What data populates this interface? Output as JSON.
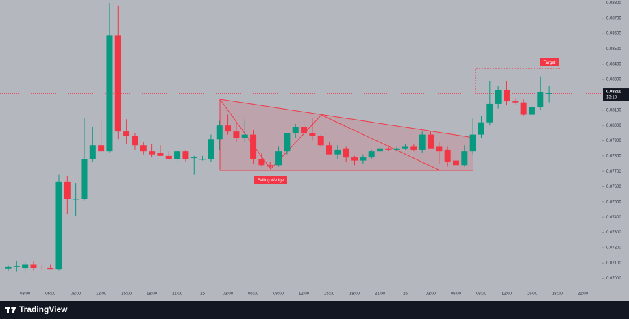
{
  "chart_data": {
    "type": "candlestick",
    "categories": [
      null,
      null,
      "03:00",
      null,
      null,
      "06:00",
      null,
      null,
      "09:00",
      null,
      null,
      "12:00",
      null,
      null,
      "15:00",
      null,
      null,
      "18:00",
      null,
      null,
      "21:00",
      null,
      null,
      "25",
      null,
      null,
      "03:00",
      null,
      null,
      "06:00",
      null,
      null,
      "09:00",
      null,
      null,
      "12:00",
      null,
      null,
      "15:00",
      null,
      null,
      "18:00",
      null,
      null,
      "21:00",
      null,
      null,
      "26",
      null,
      null,
      "03:00",
      null,
      null,
      "06:00",
      null,
      null,
      "09:00",
      null,
      null,
      "12:00",
      null,
      null,
      "15:00",
      null,
      null,
      "18:00",
      null,
      null,
      "21:00"
    ],
    "open": [
      0.07062,
      0.07075,
      0.07065,
      0.0709,
      0.0707,
      0.0707,
      0.0706,
      0.0763,
      0.0752,
      0.0752,
      0.0778,
      0.0787,
      0.0783,
      0.0859,
      0.0796,
      0.0793,
      0.0787,
      0.0783,
      0.0782,
      0.078,
      0.0778,
      0.0783,
      0.0779,
      0.0778,
      0.0778,
      0.0791,
      0.08,
      0.0796,
      0.0792,
      0.0794,
      0.0778,
      0.0774,
      0.0774,
      0.0783,
      0.0795,
      0.0799,
      0.0795,
      0.0793,
      0.0787,
      0.0781,
      0.0785,
      0.0779,
      0.0777,
      0.0779,
      0.0783,
      0.0785,
      0.0784,
      0.0785,
      0.0786,
      0.0784,
      0.0794,
      0.0786,
      0.0784,
      0.0777,
      0.0774,
      0.0783,
      0.0794,
      0.0802,
      0.0814,
      0.0823,
      0.0816,
      0.0815,
      0.0807,
      0.0812,
      0.0821,
      null,
      null,
      null,
      null
    ],
    "high": [
      0.07085,
      0.0711,
      0.0711,
      0.0711,
      0.0709,
      0.0709,
      0.0768,
      0.0767,
      0.0762,
      0.0805,
      0.0799,
      0.0804,
      0.088,
      0.0878,
      0.0804,
      0.0795,
      0.0789,
      0.0788,
      0.0787,
      0.0783,
      0.0784,
      0.0784,
      0.078,
      0.078,
      0.0794,
      0.0803,
      0.0807,
      0.0802,
      0.0804,
      0.0797,
      0.0782,
      0.0776,
      0.0786,
      0.0795,
      0.0801,
      0.0802,
      0.0805,
      0.0794,
      0.0789,
      0.0787,
      0.0786,
      0.078,
      0.0781,
      0.0784,
      0.0787,
      0.0787,
      0.0786,
      0.0788,
      0.0788,
      0.0796,
      0.0796,
      0.0789,
      0.0786,
      0.0782,
      0.0787,
      0.0805,
      0.0806,
      0.0829,
      0.0826,
      0.0829,
      0.0818,
      0.0817,
      0.0816,
      0.0832,
      0.0826,
      null,
      null,
      null,
      null
    ],
    "low": [
      0.07048,
      0.07045,
      0.07035,
      0.0705,
      0.0705,
      0.0706,
      0.0705,
      0.0742,
      0.0741,
      0.0751,
      0.0776,
      0.0783,
      0.0782,
      0.0791,
      0.0788,
      0.0784,
      0.0781,
      0.0779,
      0.078,
      0.0778,
      0.0776,
      0.0776,
      0.0768,
      0.0777,
      0.0776,
      0.0784,
      0.0794,
      0.0789,
      0.0789,
      0.0775,
      0.0773,
      0.0772,
      0.0773,
      0.0781,
      0.0792,
      0.0792,
      0.079,
      0.0786,
      0.0781,
      0.0778,
      0.0776,
      0.0774,
      0.0775,
      0.0778,
      0.0781,
      0.0783,
      0.0783,
      0.0784,
      0.0783,
      0.0782,
      0.0785,
      0.0775,
      0.0773,
      0.0774,
      0.0773,
      0.0781,
      0.0792,
      0.08,
      0.0811,
      0.0813,
      0.0813,
      0.0806,
      0.0806,
      0.081,
      0.0815,
      null,
      null,
      null,
      null
    ],
    "close": [
      0.07075,
      0.0708,
      0.0709,
      0.0707,
      0.07068,
      0.0706,
      0.0763,
      0.0752,
      0.0752,
      0.0778,
      0.0787,
      0.0783,
      0.0859,
      0.0796,
      0.0793,
      0.0787,
      0.0783,
      0.0781,
      0.078,
      0.0778,
      0.0783,
      0.0778,
      0.0779,
      0.0778,
      0.0791,
      0.08,
      0.0796,
      0.0792,
      0.0794,
      0.0778,
      0.0774,
      0.0773,
      0.0783,
      0.0795,
      0.0799,
      0.0795,
      0.0793,
      0.0787,
      0.0781,
      0.0784,
      0.0779,
      0.0777,
      0.0779,
      0.0783,
      0.0785,
      0.0784,
      0.0785,
      0.0786,
      0.0784,
      0.0794,
      0.0785,
      0.0783,
      0.0776,
      0.0774,
      0.0783,
      0.0794,
      0.0802,
      0.0814,
      0.0823,
      0.0816,
      0.0815,
      0.0807,
      0.0812,
      0.0822,
      0.08211,
      null,
      null,
      null,
      null
    ],
    "up_color": "#089981",
    "down_color": "#f23645",
    "ylim": [
      0.0694,
      0.0882
    ],
    "yticks": [
      {
        "value": 0.088,
        "label": "0.08800"
      },
      {
        "value": 0.087,
        "label": "0.08700"
      },
      {
        "value": 0.086,
        "label": "0.08600"
      },
      {
        "value": 0.085,
        "label": "0.08500"
      },
      {
        "value": 0.084,
        "label": "0.08400"
      },
      {
        "value": 0.083,
        "label": "0.08300"
      },
      {
        "value": 0.081,
        "label": "0.08100"
      },
      {
        "value": 0.08,
        "label": "0.08000"
      },
      {
        "value": 0.079,
        "label": "0.07900"
      },
      {
        "value": 0.078,
        "label": "0.07800"
      },
      {
        "value": 0.077,
        "label": "0.07700"
      },
      {
        "value": 0.076,
        "label": "0.07600"
      },
      {
        "value": 0.075,
        "label": "0.07500"
      },
      {
        "value": 0.074,
        "label": "0.07400"
      },
      {
        "value": 0.073,
        "label": "0.07300"
      },
      {
        "value": 0.072,
        "label": "0.07200"
      },
      {
        "value": 0.071,
        "label": "0.07100"
      },
      {
        "value": 0.07,
        "label": "0.07000"
      }
    ],
    "last_price": {
      "value": 0.08211,
      "label": "0.08211"
    },
    "countdown": "13:18",
    "annotations": [
      "Falling Wedge",
      "Target"
    ],
    "branding": "TradingView"
  }
}
